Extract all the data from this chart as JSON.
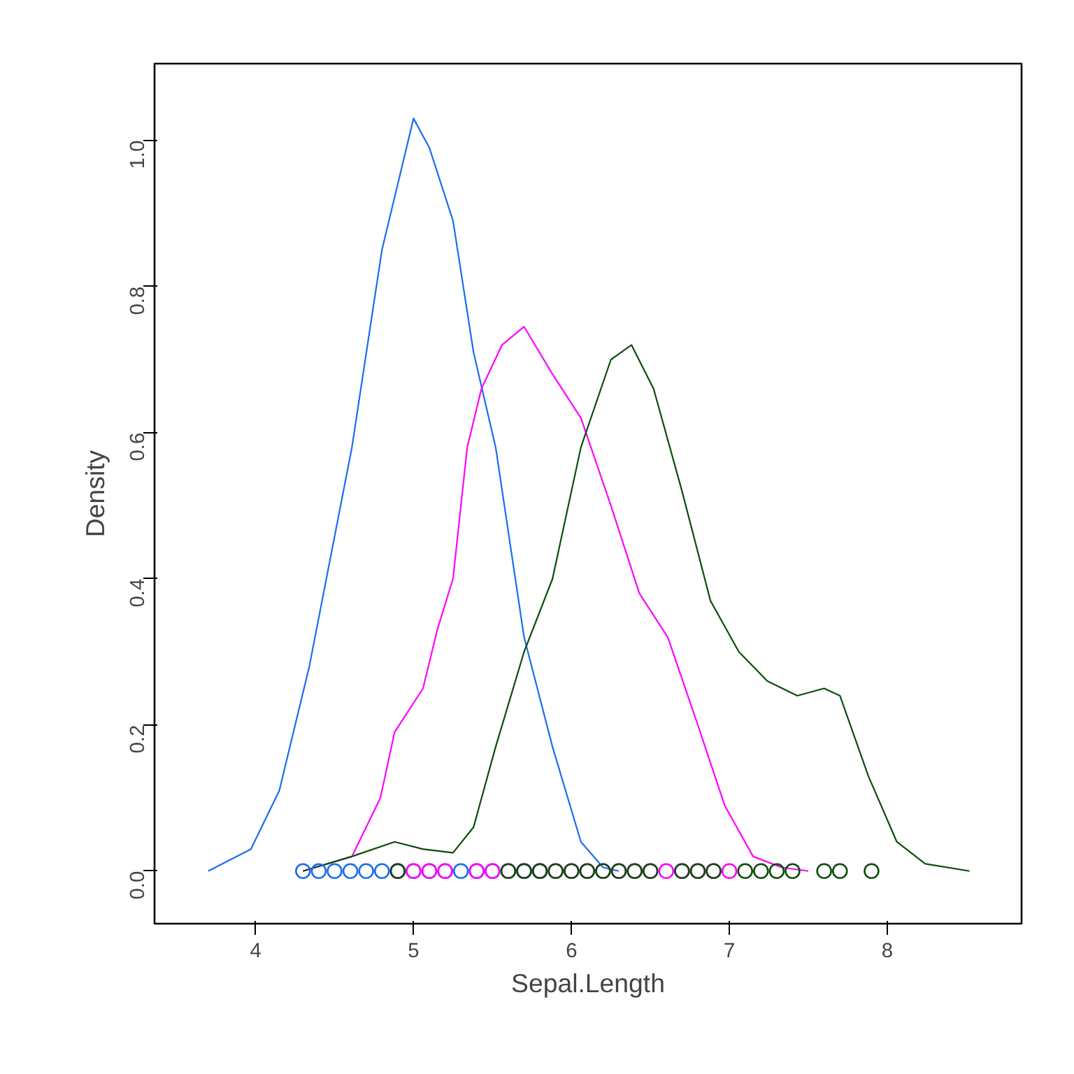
{
  "chart_data": {
    "type": "line",
    "xlabel": "Sepal.Length",
    "ylabel": "Density",
    "xlim": [
      3.36,
      8.85
    ],
    "ylim": [
      -0.072,
      1.105
    ],
    "xticks": [
      4,
      5,
      6,
      7,
      8
    ],
    "yticks": [
      {
        "value": 0,
        "label": "0.0"
      },
      {
        "value": 0.2,
        "label": "0.2"
      },
      {
        "value": 0.4,
        "label": "0.4"
      },
      {
        "value": 0.6,
        "label": "0.6"
      },
      {
        "value": 0.8,
        "label": "0.8"
      },
      {
        "value": 1.0,
        "label": "1.0"
      }
    ],
    "grid": false,
    "line_style": "solid",
    "series": [
      {
        "color": "#1c6cf0",
        "marker": "none",
        "x": [
          3.7,
          3.97,
          4.15,
          4.34,
          4.61,
          4.8,
          5.0,
          5.1,
          5.25,
          5.38,
          5.52,
          5.7,
          5.88,
          6.06,
          6.2,
          6.3
        ],
        "values": [
          0,
          0.03,
          0.11,
          0.28,
          0.58,
          0.85,
          1.03,
          0.99,
          0.89,
          0.71,
          0.58,
          0.32,
          0.17,
          0.04,
          0.005,
          0
        ]
      },
      {
        "color": "#ff00ff",
        "marker": "none",
        "x": [
          4.3,
          4.61,
          4.79,
          4.88,
          5.06,
          5.15,
          5.25,
          5.34,
          5.43,
          5.56,
          5.7,
          5.88,
          6.06,
          6.25,
          6.43,
          6.61,
          6.8,
          6.97,
          7.15,
          7.33,
          7.5
        ],
        "values": [
          0,
          0.02,
          0.1,
          0.19,
          0.25,
          0.33,
          0.4,
          0.58,
          0.66,
          0.72,
          0.745,
          0.68,
          0.62,
          0.5,
          0.38,
          0.32,
          0.2,
          0.09,
          0.02,
          0.005,
          0
        ]
      },
      {
        "color": "#0b4d0b",
        "marker": "none",
        "x": [
          4.3,
          4.61,
          4.88,
          5.06,
          5.25,
          5.38,
          5.52,
          5.7,
          5.88,
          6.06,
          6.25,
          6.38,
          6.52,
          6.7,
          6.88,
          7.06,
          7.24,
          7.43,
          7.6,
          7.7,
          7.88,
          8.06,
          8.24,
          8.52
        ],
        "values": [
          0,
          0.02,
          0.04,
          0.03,
          0.025,
          0.06,
          0.17,
          0.3,
          0.4,
          0.58,
          0.7,
          0.72,
          0.66,
          0.52,
          0.37,
          0.3,
          0.26,
          0.24,
          0.25,
          0.24,
          0.13,
          0.04,
          0.01,
          0
        ]
      },
      {
        "type": "scatter",
        "color": "#1c6cf0",
        "marker": "circle",
        "x": [
          4.3,
          4.4,
          4.5,
          4.6,
          4.7,
          4.8,
          4.9,
          5.0,
          5.1,
          5.2,
          5.3,
          5.4,
          5.5,
          5.7,
          5.8
        ],
        "values": [
          0,
          0,
          0,
          0,
          0,
          0,
          0,
          0,
          0,
          0,
          0,
          0,
          0,
          0,
          0
        ]
      },
      {
        "type": "scatter",
        "color": "#ff00ff",
        "marker": "circle",
        "x": [
          4.9,
          5.0,
          5.1,
          5.2,
          5.4,
          5.5,
          5.6,
          5.7,
          5.8,
          5.9,
          6.0,
          6.1,
          6.2,
          6.3,
          6.4,
          6.5,
          6.6,
          6.7,
          6.8,
          6.9,
          7.0
        ],
        "values": [
          0,
          0,
          0,
          0,
          0,
          0,
          0,
          0,
          0,
          0,
          0,
          0,
          0,
          0,
          0,
          0,
          0,
          0,
          0,
          0,
          0
        ]
      },
      {
        "type": "scatter",
        "color": "#0b4d0b",
        "marker": "circle",
        "x": [
          4.9,
          5.6,
          5.7,
          5.8,
          5.9,
          6.0,
          6.1,
          6.2,
          6.3,
          6.4,
          6.5,
          6.7,
          6.8,
          6.9,
          7.1,
          7.2,
          7.3,
          7.4,
          7.6,
          7.7,
          7.9
        ],
        "values": [
          0,
          0,
          0,
          0,
          0,
          0,
          0,
          0,
          0,
          0,
          0,
          0,
          0,
          0,
          0,
          0,
          0,
          0,
          0,
          0,
          0
        ]
      }
    ]
  }
}
